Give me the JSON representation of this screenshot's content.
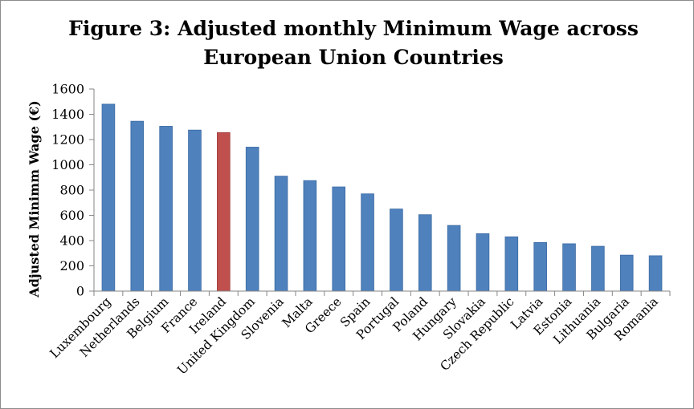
{
  "chart_data": {
    "type": "bar",
    "title": "Figure 3: Adjusted monthly Minimum Wage across European Union Countries",
    "title_lines": [
      "Figure 3: Adjusted monthly Minimum Wage across",
      "European Union Countries"
    ],
    "xlabel": "",
    "ylabel": "Adjusted Minimm Wage (€)",
    "ylim": [
      0,
      1600
    ],
    "yticks": [
      0,
      200,
      400,
      600,
      800,
      1000,
      1200,
      1400,
      1600
    ],
    "grid": false,
    "legend": "none",
    "categories": [
      "Luxembourg",
      "Netherlands",
      "Belgium",
      "France",
      "Ireland",
      "United Kingdom",
      "Slovenia",
      "Malta",
      "Greece",
      "Spain",
      "Portugal",
      "Poland",
      "Hungary",
      "Slovakia",
      "Czech Republic",
      "Latvia",
      "Estonia",
      "Lithuania",
      "Bulgaria",
      "Romania"
    ],
    "values": [
      1480,
      1345,
      1305,
      1275,
      1255,
      1140,
      910,
      875,
      825,
      770,
      650,
      605,
      520,
      455,
      430,
      385,
      375,
      355,
      285,
      280
    ],
    "highlight_category": "Ireland",
    "colors": {
      "bar": "#4f81bd",
      "bar_stroke": "#3b6aa3",
      "highlight": "#c0504d",
      "highlight_stroke": "#9b3a38",
      "axis": "#868686"
    }
  }
}
